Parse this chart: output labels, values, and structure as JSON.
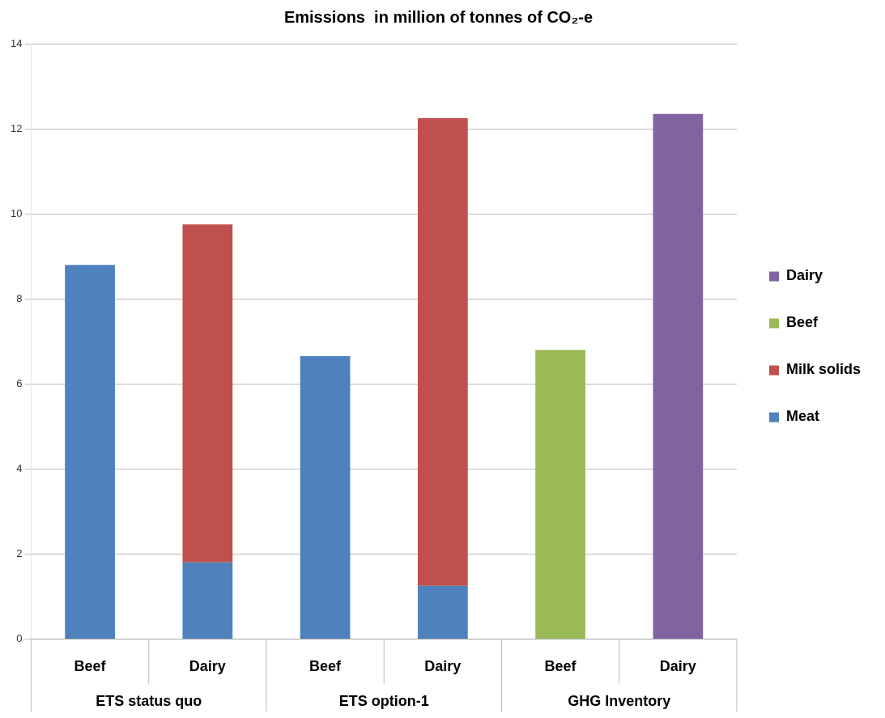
{
  "chart_data": {
    "type": "bar",
    "title": "Emissions  in million of tonnes of CO₂-e",
    "stacked": true,
    "categories": [
      "Beef",
      "Dairy",
      "Beef",
      "Dairy",
      "Beef",
      "Dairy"
    ],
    "series": [
      {
        "name": "Meat",
        "color": "#4f81bd",
        "values": [
          8.8,
          1.8,
          6.65,
          1.25,
          null,
          null
        ]
      },
      {
        "name": "Milk solids",
        "color": "#c0504d",
        "values": [
          null,
          7.95,
          null,
          11.0,
          null,
          null
        ]
      },
      {
        "name": "Beef",
        "color": "#9bbb59",
        "values": [
          null,
          null,
          null,
          null,
          6.8,
          null
        ]
      },
      {
        "name": "Dairy",
        "color": "#8064a2",
        "values": [
          null,
          null,
          null,
          null,
          null,
          12.35
        ]
      }
    ],
    "annotations": [
      "ETS status quo",
      "ETS option-1",
      "GHG Inventory"
    ],
    "ylim": [
      0,
      14
    ],
    "yticks": [
      0,
      2,
      4,
      6,
      8,
      10,
      12,
      14
    ],
    "grid": "y",
    "legend": "right"
  }
}
